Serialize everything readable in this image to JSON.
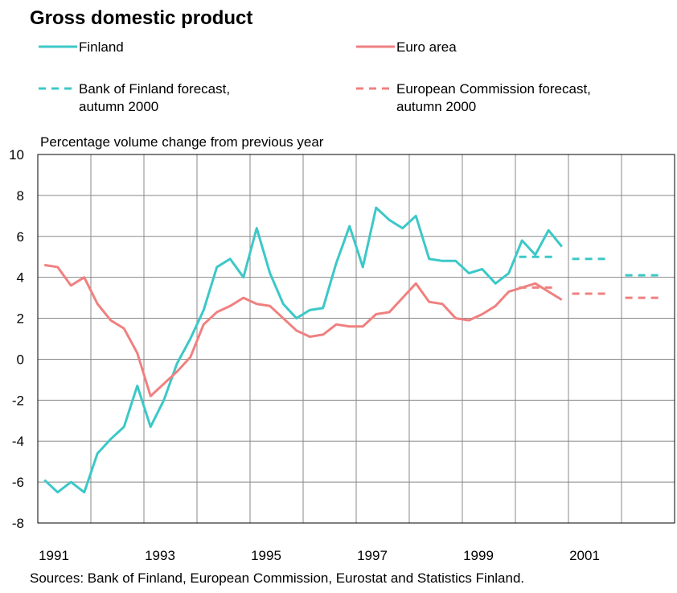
{
  "chart_data": {
    "type": "line",
    "title": "Gross domestic product",
    "y_label": "Percentage volume change from previous year",
    "source": "Sources: Bank of Finland, European Commission, Eurostat and Statistics Finland.",
    "xlim": [
      1991,
      2003
    ],
    "xticks": [
      1991,
      1993,
      1995,
      1997,
      1999,
      2001
    ],
    "ylim": [
      -8,
      10
    ],
    "yticks": [
      -8,
      -6,
      -4,
      -2,
      0,
      2,
      4,
      6,
      8,
      10
    ],
    "grid": true,
    "x": [
      1991.125,
      1991.375,
      1991.625,
      1991.875,
      1992.125,
      1992.375,
      1992.625,
      1992.875,
      1993.125,
      1993.375,
      1993.625,
      1993.875,
      1994.125,
      1994.375,
      1994.625,
      1994.875,
      1995.125,
      1995.375,
      1995.625,
      1995.875,
      1996.125,
      1996.375,
      1996.625,
      1996.875,
      1997.125,
      1997.375,
      1997.625,
      1997.875,
      1998.125,
      1998.375,
      1998.625,
      1998.875,
      1999.125,
      1999.375,
      1999.625,
      1999.875,
      2000.125,
      2000.375,
      2000.625,
      2000.875
    ],
    "series": [
      {
        "name": "Finland",
        "color": "#3cc8c8",
        "values": [
          -5.9,
          -6.5,
          -6.0,
          -6.5,
          -4.6,
          -3.9,
          -3.3,
          -1.3,
          -3.3,
          -2.0,
          -0.2,
          1.0,
          2.4,
          4.5,
          4.9,
          4.0,
          6.4,
          4.2,
          2.7,
          2.0,
          2.4,
          2.5,
          4.7,
          6.5,
          4.5,
          7.4,
          6.8,
          6.4,
          7.0,
          4.9,
          4.8,
          4.8,
          4.2,
          4.4,
          3.7,
          4.2,
          5.8,
          5.1,
          6.3,
          5.5
        ]
      },
      {
        "name": "Euro area",
        "color": "#f08080",
        "values": [
          4.6,
          4.5,
          3.6,
          4.0,
          2.7,
          1.9,
          1.5,
          0.3,
          -1.8,
          -1.2,
          -0.6,
          0.1,
          1.7,
          2.3,
          2.6,
          3.0,
          2.7,
          2.6,
          2.0,
          1.4,
          1.1,
          1.2,
          1.7,
          1.6,
          1.6,
          2.2,
          2.3,
          3.0,
          3.7,
          2.8,
          2.7,
          2.0,
          1.9,
          2.2,
          2.6,
          3.3,
          3.5,
          3.7,
          3.3,
          2.9
        ]
      }
    ],
    "forecasts": [
      {
        "name": "Bank of Finland forecast, autumn 2000",
        "color": "#3cc8c8",
        "x": [
          2000,
          2001,
          2002
        ],
        "values": [
          5.0,
          4.9,
          4.1
        ]
      },
      {
        "name": "European Commission forecast, autumn 2000",
        "color": "#f08080",
        "x": [
          2000,
          2001,
          2002
        ],
        "values": [
          3.5,
          3.2,
          3.0
        ]
      }
    ]
  }
}
